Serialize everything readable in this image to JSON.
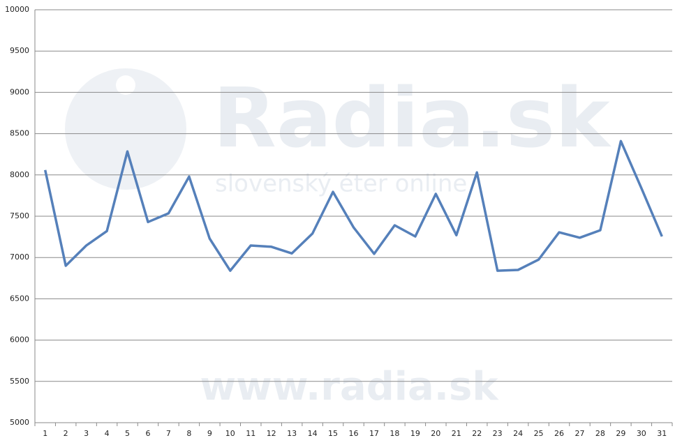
{
  "chart_data": {
    "type": "line",
    "categories": [
      "1",
      "2",
      "3",
      "4",
      "5",
      "6",
      "7",
      "8",
      "9",
      "10",
      "11",
      "12",
      "13",
      "14",
      "15",
      "16",
      "17",
      "18",
      "19",
      "20",
      "21",
      "22",
      "23",
      "24",
      "25",
      "26",
      "27",
      "28",
      "29",
      "30",
      "31"
    ],
    "values": [
      8060,
      6900,
      7145,
      7320,
      8285,
      7430,
      7535,
      7980,
      7230,
      6840,
      7145,
      7130,
      7050,
      7290,
      7795,
      7365,
      7045,
      7390,
      7255,
      7770,
      7270,
      8030,
      6840,
      6850,
      6975,
      7305,
      7240,
      7330,
      8410,
      7840,
      7255
    ],
    "color": "#5580ba",
    "ylim": [
      5000,
      10000
    ],
    "yticks": [
      5000,
      5500,
      6000,
      6500,
      7000,
      7500,
      8000,
      8500,
      9000,
      9500,
      10000
    ],
    "grid": true,
    "watermark": {
      "logo": "Radia.sk",
      "tagline": "slovenský éter online",
      "url": "www.radia.sk"
    }
  }
}
